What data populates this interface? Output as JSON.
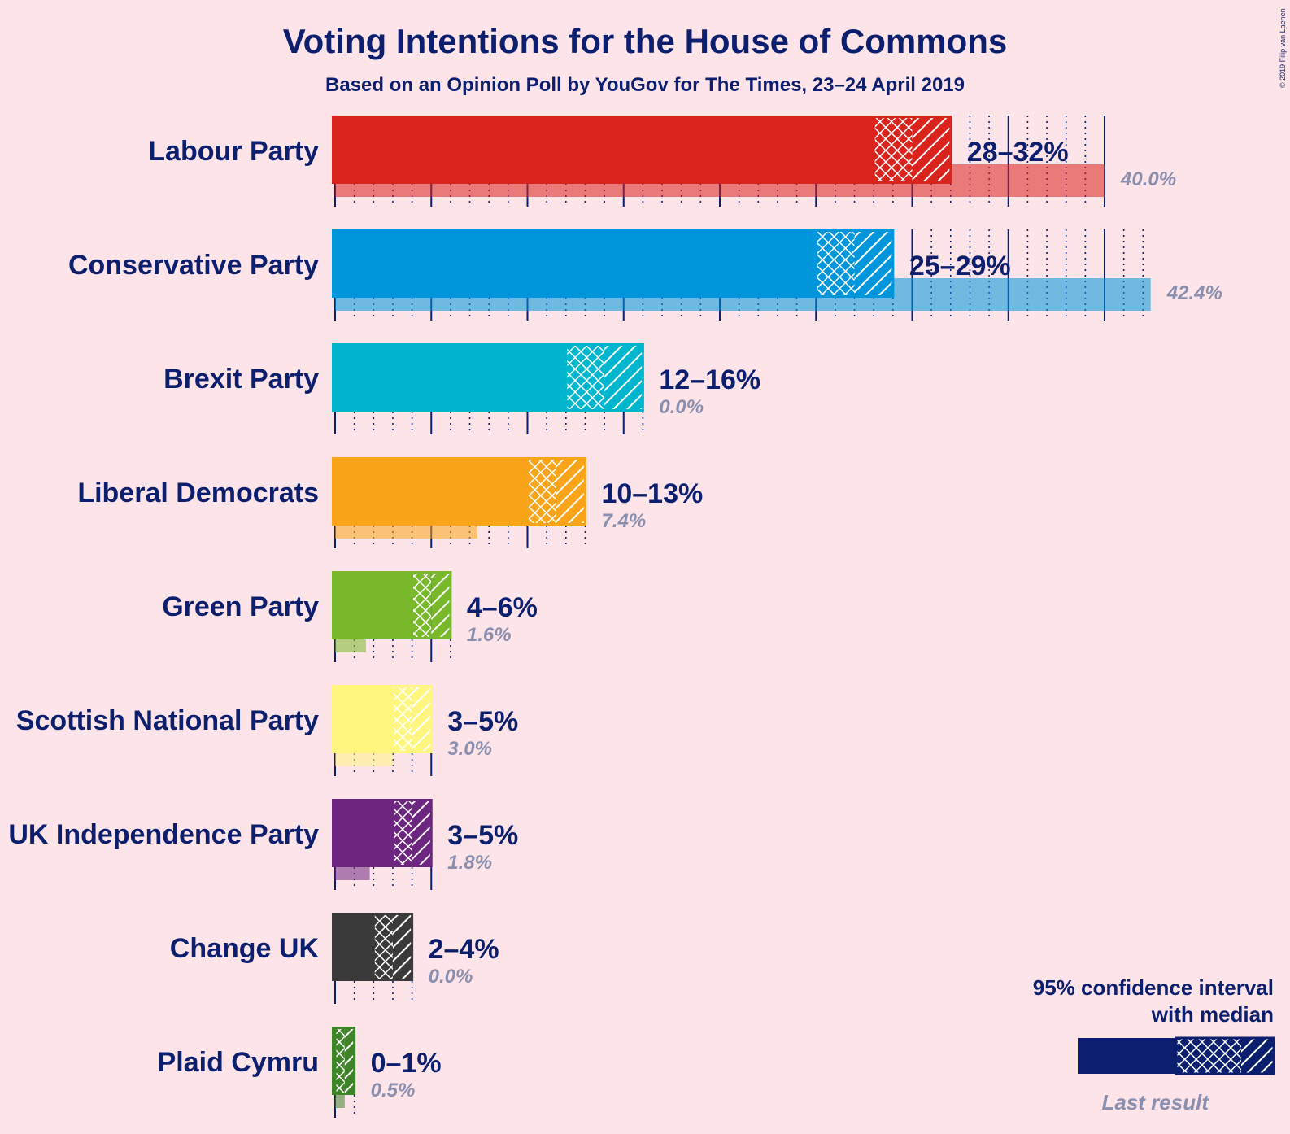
{
  "chart_data": {
    "type": "bar",
    "orientation": "horizontal",
    "title": "Voting Intentions for the House of Commons",
    "subtitle": "Based on an Opinion Poll by YouGov for The Times, 23–24 April 2019",
    "copyright": "© 2019 Filip van Laenen",
    "unit": "%",
    "categories": [
      "Labour Party",
      "Conservative Party",
      "Brexit Party",
      "Liberal Democrats",
      "Green Party",
      "Scottish National Party",
      "UK Independence Party",
      "Change UK",
      "Plaid Cymru"
    ],
    "series": [
      {
        "name": "95% confidence interval",
        "low": [
          28,
          25,
          12,
          10,
          4,
          3,
          3,
          2,
          0
        ],
        "high": [
          32,
          29,
          16,
          13,
          6,
          5,
          5,
          4,
          1
        ]
      },
      {
        "name": "Last result",
        "values": [
          40.0,
          42.4,
          0.0,
          7.4,
          1.6,
          3.0,
          1.8,
          0.0,
          0.5
        ]
      }
    ],
    "range_labels": [
      "28–32%",
      "25–29%",
      "12–16%",
      "10–13%",
      "4–6%",
      "3–5%",
      "3–5%",
      "2–4%",
      "0–1%"
    ],
    "last_labels": [
      "40.0%",
      "42.4%",
      "0.0%",
      "7.4%",
      "1.6%",
      "3.0%",
      "1.8%",
      "0.0%",
      "0.5%"
    ],
    "colors": [
      "#d9231d",
      "#0096db",
      "#00b6cf",
      "#faa41a",
      "#78b82a",
      "#fff680",
      "#6d2680",
      "#3a3a3a",
      "#3f8428"
    ],
    "grid": true,
    "legend": {
      "position": "bottom-right",
      "text_line1": "95% confidence interval",
      "text_line2": "with median",
      "last_result": "Last result"
    }
  }
}
